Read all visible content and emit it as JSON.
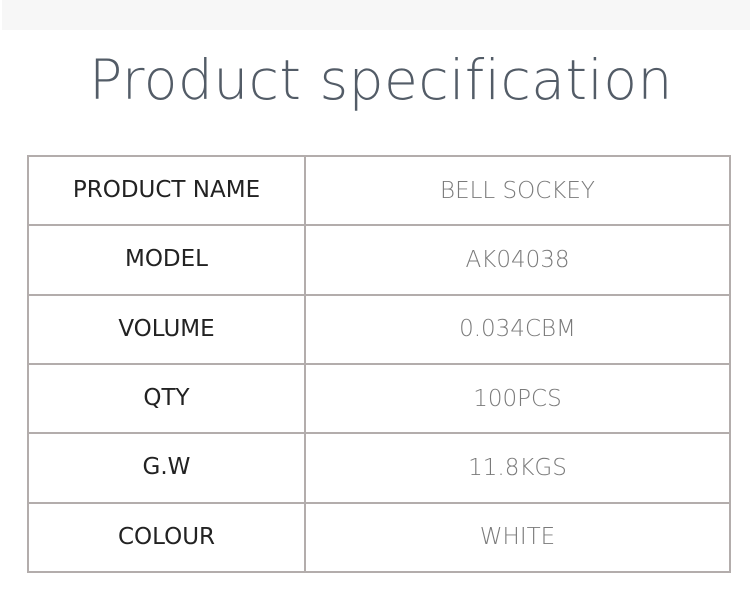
{
  "title": "Product specification",
  "spec_rows": [
    {
      "label": "PRODUCT NAME",
      "value": "BELL SOCKEY"
    },
    {
      "label": "MODEL",
      "value": "AK04038"
    },
    {
      "label": "VOLUME",
      "value": "0.034CBM"
    },
    {
      "label": "QTY",
      "value": "100PCS"
    },
    {
      "label": "G.W",
      "value": "11.8KGS"
    },
    {
      "label": "COLOUR",
      "value": "WHITE"
    }
  ]
}
